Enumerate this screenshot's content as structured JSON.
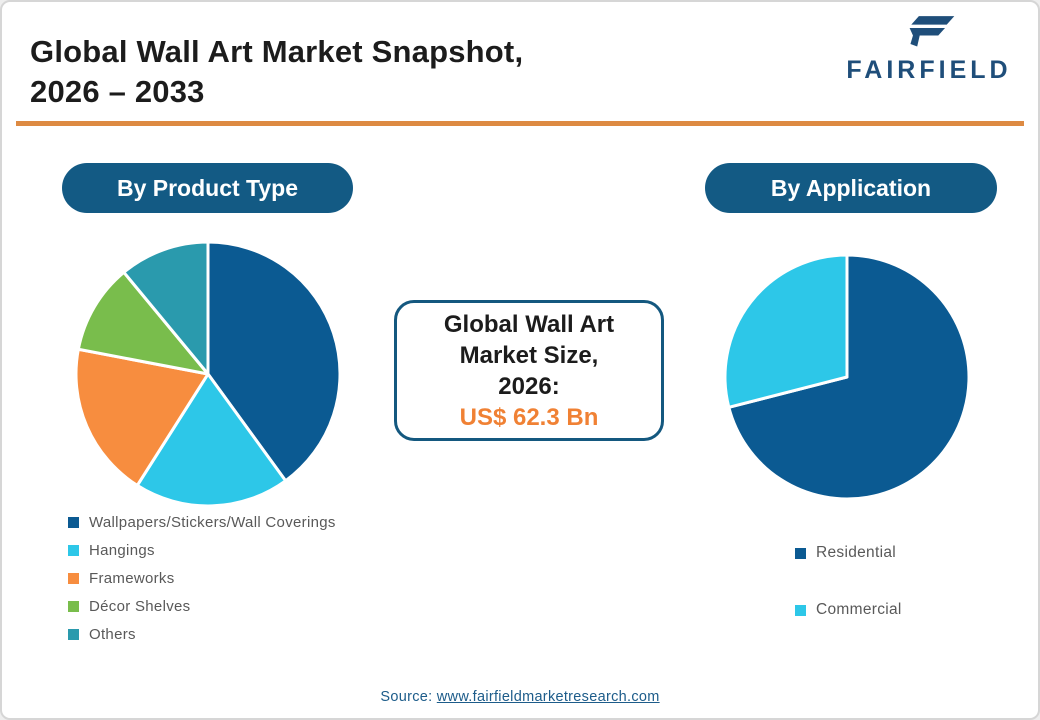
{
  "header": {
    "title_line1": "Global Wall Art Market Snapshot,",
    "title_line2": "2026 – 2033",
    "logo_text": "FAIRFIELD"
  },
  "callout": {
    "line1": "Global Wall Art",
    "line2": "Market Size,",
    "line3": "2026:",
    "value": "US$ 62.3 Bn"
  },
  "source": {
    "prefix": "Source: ",
    "link": "www.fairfieldmarketresearch.com"
  },
  "palette": {
    "dark_blue": "#0b5a92",
    "cyan": "#2dc7e8",
    "orange": "#f78d3f",
    "green": "#79bd4c",
    "teal": "#2a9aad",
    "pill_blue": "#135a84",
    "divider_orange": "#dd8a42",
    "value_orange": "#f08134",
    "logo_blue": "#1f4e7a",
    "link_blue": "#1d5c8a",
    "title_color": "#1c1c1c",
    "legend_text_gray": "#595959"
  },
  "chart_data": [
    {
      "type": "pie",
      "title": "By Product Type",
      "categories": [
        "Wallpapers/Stickers/Wall Coverings",
        "Hangings",
        "Frameworks",
        "Décor Shelves",
        "Others"
      ],
      "values": [
        40,
        19,
        19,
        11,
        11
      ],
      "colors": [
        "#0b5a92",
        "#2dc7e8",
        "#f78d3f",
        "#79bd4c",
        "#2a9aad"
      ],
      "start_angle_deg": 0,
      "direction": "clockwise",
      "legend_position": "below-left",
      "values_note": "percent share estimated from slice angles"
    },
    {
      "type": "pie",
      "title": "By Application",
      "categories": [
        "Residential",
        "Commercial"
      ],
      "values": [
        71,
        29
      ],
      "colors": [
        "#0b5a92",
        "#2dc7e8"
      ],
      "start_angle_deg": 0,
      "direction": "clockwise",
      "legend_position": "below-left",
      "values_note": "percent share estimated from slice angles"
    }
  ]
}
